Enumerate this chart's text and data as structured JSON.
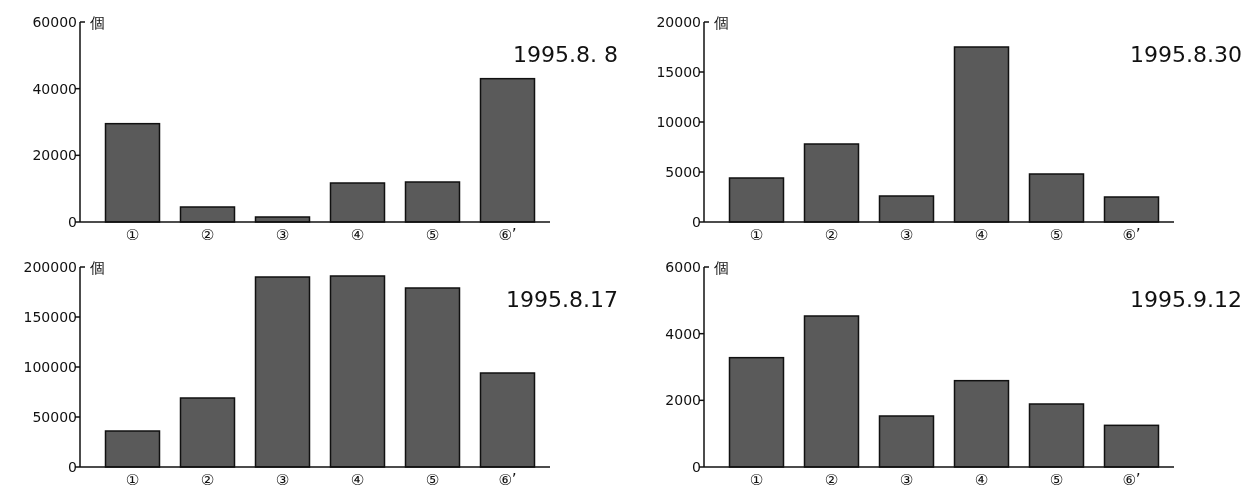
{
  "chart_data": [
    {
      "type": "bar",
      "title": "1995.8. 8",
      "ylabel": "個",
      "categories": [
        "①",
        "②",
        "③",
        "④",
        "⑤",
        "⑥’"
      ],
      "values": [
        29500,
        4500,
        1500,
        11700,
        12000,
        43000
      ],
      "color": "#5a5a5a",
      "ylim": [
        0,
        60000
      ],
      "yticks": [
        0,
        20000,
        40000,
        60000
      ]
    },
    {
      "type": "bar",
      "title": "1995.8.30",
      "ylabel": "個",
      "categories": [
        "①",
        "②",
        "③",
        "④",
        "⑤",
        "⑥’"
      ],
      "values": [
        4400,
        7800,
        2600,
        17500,
        4800,
        2500
      ],
      "color": "#5a5a5a",
      "ylim": [
        0,
        20000
      ],
      "yticks": [
        0,
        5000,
        10000,
        15000,
        20000
      ]
    },
    {
      "type": "bar",
      "title": "1995.8.17",
      "ylabel": "個",
      "categories": [
        "①",
        "②",
        "③",
        "④",
        "⑤",
        "⑥’"
      ],
      "values": [
        36000,
        69000,
        190000,
        191000,
        179000,
        94000
      ],
      "color": "#5a5a5a",
      "ylim": [
        0,
        200000
      ],
      "yticks": [
        0,
        50000,
        100000,
        150000,
        200000
      ]
    },
    {
      "type": "bar",
      "title": "1995.9.12",
      "ylabel": "個",
      "categories": [
        "①",
        "②",
        "③",
        "④",
        "⑤",
        "⑥’"
      ],
      "values": [
        3280,
        4530,
        1530,
        2590,
        1890,
        1250
      ],
      "color": "#5a5a5a",
      "ylim": [
        0,
        6000
      ],
      "yticks": [
        0,
        2000,
        4000,
        6000
      ]
    }
  ]
}
